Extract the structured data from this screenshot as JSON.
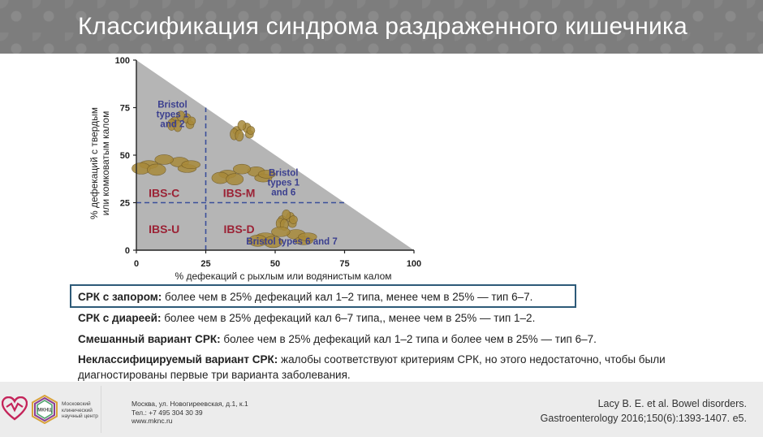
{
  "slide": {
    "title": "Классификация синдрома раздраженного кишечника"
  },
  "chart_data": {
    "type": "area",
    "title": "",
    "xlabel": "% дефекаций с рыхлым или водянистым калом",
    "ylabel_line1": "% дефекаций с твердым",
    "ylabel_line2": "или комковатым калом",
    "xlim": [
      0,
      100
    ],
    "ylim": [
      0,
      100
    ],
    "x_ticks": [
      0,
      25,
      50,
      75,
      100
    ],
    "y_ticks": [
      0,
      25,
      50,
      75,
      100
    ],
    "region": {
      "points": [
        [
          0,
          0
        ],
        [
          100,
          0
        ],
        [
          0,
          100
        ]
      ]
    },
    "thresholds": {
      "x": 25,
      "y": 25
    },
    "quadrants": [
      {
        "label": "IBS-C",
        "x": 10,
        "y": 28
      },
      {
        "label": "IBS-M",
        "x": 37,
        "y": 28
      },
      {
        "label": "IBS-U",
        "x": 10,
        "y": 9
      },
      {
        "label": "IBS-D",
        "x": 37,
        "y": 9
      }
    ],
    "annotations": [
      {
        "lines": [
          "Bristol",
          "types 1",
          "and 2"
        ],
        "x": 13,
        "y": 75
      },
      {
        "lines": [
          "Bristol",
          "types 1",
          "and 6"
        ],
        "x": 53,
        "y": 39
      },
      {
        "lines": [
          "Bristol types 6 and 7"
        ],
        "x": 56,
        "y": 3
      }
    ],
    "colors": {
      "region": "#b5b5b5",
      "dashed": "#3a4f9a",
      "quadrant_text": "#9b2235",
      "bristol_text": "#3b3f8f",
      "stool": "#a88a3a"
    }
  },
  "descriptions": [
    {
      "bold": "СРК с запором:",
      "text": " более чем в 25% дефекаций кал 1–2 типа, менее чем в 25% — тип 6–7."
    },
    {
      "bold": "СРК с диареей:",
      "text": " более чем в 25% дефекаций кал 6–7 типа,, менее чем в 25% — тип 1–2."
    },
    {
      "bold": "Смешанный вариант СРК:",
      "text": " более чем в 25% дефекаций кал 1–2 типа и более чем в 25% — тип 6–7."
    },
    {
      "bold": "Неклассифицируемый вариант СРК:",
      "text": " жалобы соответствуют критериям СРК, но этого недостаточно, чтобы были диагностированы первые три варианта заболевания."
    }
  ],
  "footer": {
    "logo_abbrev": "МКНЦ",
    "org_name": "Московский клинический научный центр",
    "address_line1": "Москва, ул. Новогиреевская, д.1, к.1",
    "address_line2": "Тел.: +7 495 304 30 39",
    "address_line3": "www.mknc.ru",
    "citation_line1": "Lacy B. E. et al. Bowel disorders.",
    "citation_line2": "Gastroenterology 2016;150(6):1393-1407. e5."
  }
}
